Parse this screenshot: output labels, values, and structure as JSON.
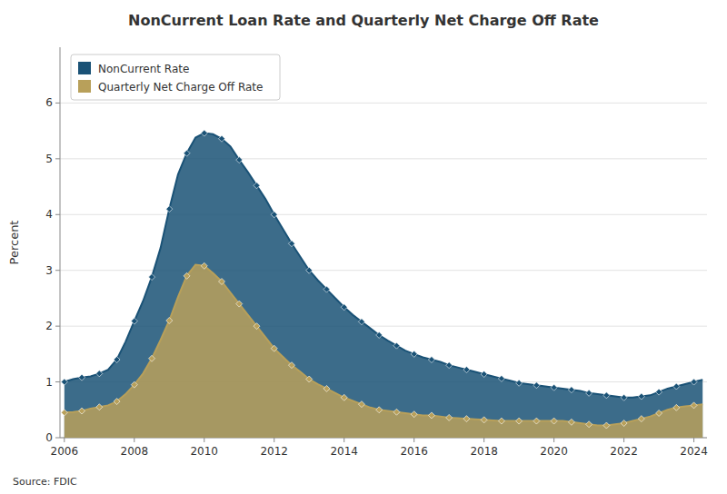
{
  "chart_data": {
    "type": "area",
    "title": "NonCurrent Loan Rate and Quarterly Net Charge Off Rate",
    "y_label": "Percent",
    "annotations": [
      "Source: FDIC"
    ],
    "categories": [
      "2006",
      null,
      null,
      null,
      null,
      null,
      null,
      null,
      "2008",
      null,
      null,
      null,
      null,
      null,
      null,
      null,
      "2010",
      null,
      null,
      null,
      null,
      null,
      null,
      null,
      "2012",
      null,
      null,
      null,
      null,
      null,
      null,
      null,
      "2014",
      null,
      null,
      null,
      null,
      null,
      null,
      null,
      "2016",
      null,
      null,
      null,
      null,
      null,
      null,
      null,
      "2018",
      null,
      null,
      null,
      null,
      null,
      null,
      null,
      "2020",
      null,
      null,
      null,
      null,
      null,
      null,
      null,
      "2022",
      null,
      null,
      null,
      null,
      null,
      null,
      null,
      "2024",
      null
    ],
    "series": [
      {
        "name": "NonCurrent Rate",
        "color": "#1a5276",
        "marker": "diamond",
        "values": [
          1.0,
          1.05,
          1.08,
          1.1,
          1.15,
          1.22,
          1.4,
          1.72,
          2.09,
          2.45,
          2.88,
          3.4,
          4.1,
          4.72,
          5.1,
          5.38,
          5.46,
          5.44,
          5.36,
          5.22,
          4.98,
          4.76,
          4.52,
          4.28,
          4.0,
          3.74,
          3.48,
          3.24,
          3.0,
          2.82,
          2.66,
          2.5,
          2.34,
          2.2,
          2.08,
          1.96,
          1.84,
          1.74,
          1.65,
          1.56,
          1.5,
          1.44,
          1.4,
          1.36,
          1.3,
          1.26,
          1.22,
          1.18,
          1.14,
          1.1,
          1.06,
          1.02,
          0.98,
          0.96,
          0.94,
          0.92,
          0.9,
          0.88,
          0.86,
          0.84,
          0.8,
          0.78,
          0.76,
          0.74,
          0.72,
          0.72,
          0.74,
          0.76,
          0.82,
          0.88,
          0.92,
          0.96,
          1.0,
          1.04
        ]
      },
      {
        "name": "Quarterly Net Charge Off Rate",
        "color": "#b8a05a",
        "marker": "diamond",
        "values": [
          0.45,
          0.46,
          0.48,
          0.52,
          0.55,
          0.58,
          0.65,
          0.78,
          0.95,
          1.15,
          1.42,
          1.75,
          2.1,
          2.52,
          2.9,
          3.1,
          3.08,
          2.95,
          2.8,
          2.6,
          2.4,
          2.2,
          2.0,
          1.8,
          1.6,
          1.45,
          1.3,
          1.18,
          1.05,
          0.96,
          0.88,
          0.8,
          0.72,
          0.66,
          0.6,
          0.54,
          0.5,
          0.48,
          0.46,
          0.44,
          0.42,
          0.4,
          0.4,
          0.38,
          0.36,
          0.35,
          0.34,
          0.33,
          0.32,
          0.31,
          0.3,
          0.3,
          0.3,
          0.3,
          0.3,
          0.3,
          0.3,
          0.3,
          0.28,
          0.26,
          0.24,
          0.22,
          0.22,
          0.24,
          0.26,
          0.3,
          0.34,
          0.38,
          0.44,
          0.5,
          0.54,
          0.56,
          0.58,
          0.6
        ]
      }
    ],
    "ylim": [
      0,
      7
    ],
    "yticks": [
      0,
      1,
      2,
      3,
      4,
      5,
      6
    ],
    "grid": true,
    "legend": "upper left"
  }
}
